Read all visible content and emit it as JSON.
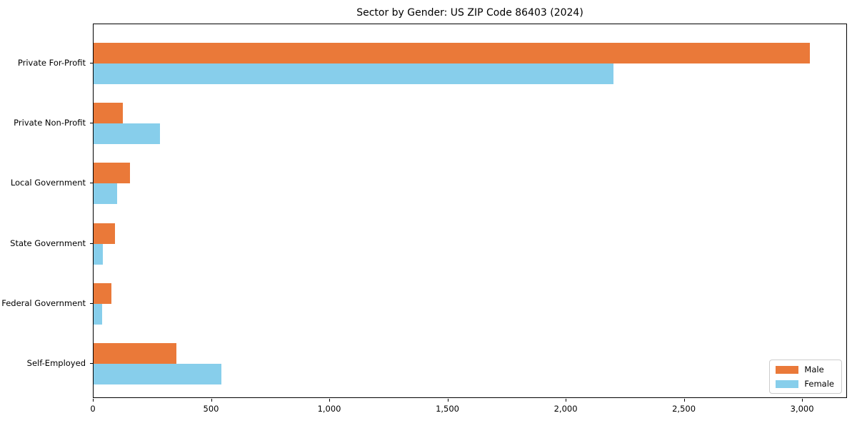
{
  "chart_data": {
    "type": "bar",
    "orientation": "horizontal",
    "title": "Sector by Gender: US ZIP Code 86403 (2024)",
    "categories": [
      "Private For-Profit",
      "Private Non-Profit",
      "Local Government",
      "State Government",
      "Federal Government",
      "Self-Employed"
    ],
    "series": [
      {
        "name": "Male",
        "color": "#ea7939",
        "values": [
          3030,
          125,
          155,
          90,
          75,
          350
        ]
      },
      {
        "name": "Female",
        "color": "#87ceeb",
        "values": [
          2200,
          280,
          100,
          40,
          35,
          540
        ]
      }
    ],
    "xlabel": "",
    "ylabel": "",
    "xlim": [
      0,
      3190
    ],
    "xticks": [
      0,
      500,
      1000,
      1500,
      2000,
      2500,
      3000
    ],
    "xtick_labels": [
      "0",
      "500",
      "1,000",
      "1,500",
      "2,000",
      "2,500",
      "3,000"
    ],
    "legend_position": "lower right",
    "grid": false,
    "colors": {
      "axis": "#000000",
      "background": "#ffffff",
      "legend_border": "#cccccc"
    }
  }
}
